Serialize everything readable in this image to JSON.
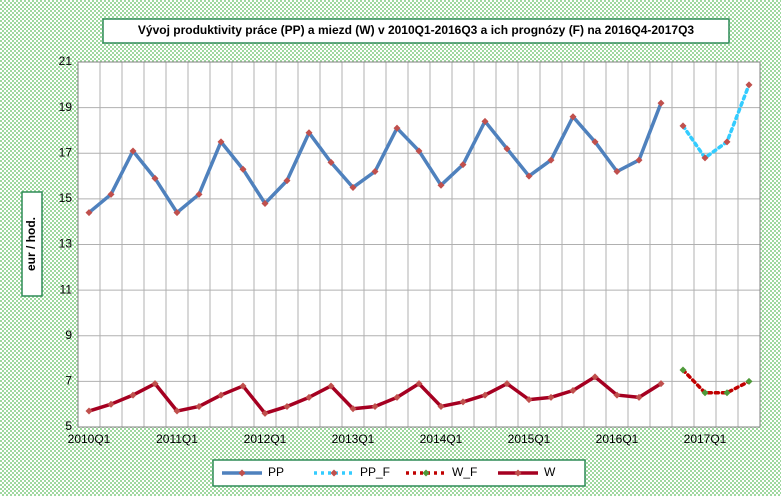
{
  "chart_data": {
    "type": "line",
    "title": "Vývoj produktivity práce (PP) a miezd (W)  v 2010Q1-2016Q3   a ich prognózy (F) na 2016Q4-2017Q3",
    "y_label": "eur / hod.",
    "categories": [
      "2010Q1",
      null,
      null,
      null,
      "2011Q1",
      null,
      null,
      null,
      "2012Q1",
      null,
      null,
      null,
      "2013Q1",
      null,
      null,
      null,
      "2014Q1",
      null,
      null,
      null,
      "2015Q1",
      null,
      null,
      null,
      "2016Q1",
      null,
      null,
      null,
      "2017Q1",
      null,
      null
    ],
    "series": [
      {
        "name": "PP",
        "color": "#4f81bd",
        "marker_color": "#c0504d",
        "dashed": false,
        "values": [
          14.4,
          15.2,
          17.1,
          15.9,
          14.4,
          15.2,
          17.5,
          16.3,
          14.8,
          15.8,
          17.9,
          16.6,
          15.5,
          16.2,
          18.1,
          17.1,
          15.6,
          16.5,
          18.4,
          17.2,
          16.0,
          16.7,
          18.6,
          17.5,
          16.2,
          16.7,
          19.2,
          null,
          null,
          null,
          null
        ]
      },
      {
        "name": "PP_F",
        "color": "#33ccff",
        "marker_color": "#c0504d",
        "dashed": true,
        "values": [
          null,
          null,
          null,
          null,
          null,
          null,
          null,
          null,
          null,
          null,
          null,
          null,
          null,
          null,
          null,
          null,
          null,
          null,
          null,
          null,
          null,
          null,
          null,
          null,
          null,
          null,
          null,
          18.2,
          16.8,
          17.5,
          20.0
        ]
      },
      {
        "name": "W_F",
        "color": "#c00000",
        "marker_color": "#4f9a3a",
        "dashed": true,
        "values": [
          null,
          null,
          null,
          null,
          null,
          null,
          null,
          null,
          null,
          null,
          null,
          null,
          null,
          null,
          null,
          null,
          null,
          null,
          null,
          null,
          null,
          null,
          null,
          null,
          null,
          null,
          null,
          7.5,
          6.5,
          6.5,
          7.0
        ]
      },
      {
        "name": "W",
        "color": "#a50021",
        "marker_color": "#c0504d",
        "dashed": false,
        "values": [
          5.7,
          6.0,
          6.4,
          6.9,
          5.7,
          5.9,
          6.4,
          6.8,
          5.6,
          5.9,
          6.3,
          6.8,
          5.8,
          5.9,
          6.3,
          6.9,
          5.9,
          6.1,
          6.4,
          6.9,
          6.2,
          6.3,
          6.6,
          7.2,
          6.4,
          6.3,
          6.9,
          null,
          null,
          null,
          null
        ]
      }
    ],
    "ylim": [
      5,
      21
    ],
    "yticks": [
      5,
      7,
      9,
      11,
      13,
      15,
      17,
      19,
      21
    ],
    "grid": true
  }
}
